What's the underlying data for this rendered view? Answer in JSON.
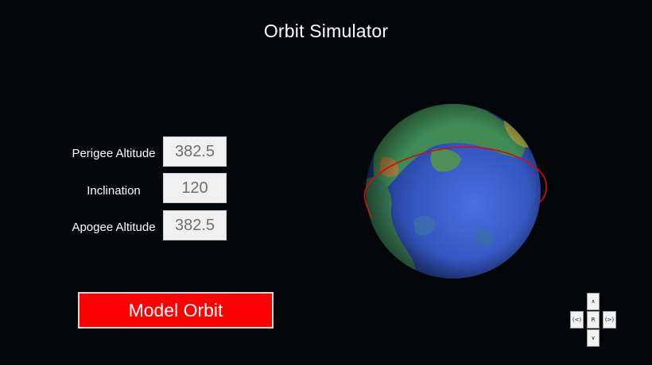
{
  "app": {
    "title": "Orbit Simulator"
  },
  "form": {
    "perigee": {
      "label": "Perigee Altitude",
      "value": "382.5"
    },
    "inclination": {
      "label": "Inclination",
      "value": "120"
    },
    "apogee": {
      "label": "Apogee Altitude",
      "value": "382.5"
    },
    "submit_label": "Model Orbit"
  },
  "view_controls": {
    "up_label": "∧",
    "left_label": "(<)",
    "reset_label": "R",
    "right_label": "(>)",
    "down_label": "∨"
  },
  "globe": {
    "icon": "earth-globe-icon",
    "orbit_color": "#d01010",
    "ocean_color": "#3355c0",
    "land_color": "#3a8a5a"
  },
  "colors": {
    "background": "#020608",
    "button_red": "#ff0000",
    "input_bg": "#f0f0f0",
    "input_text": "#707070"
  }
}
